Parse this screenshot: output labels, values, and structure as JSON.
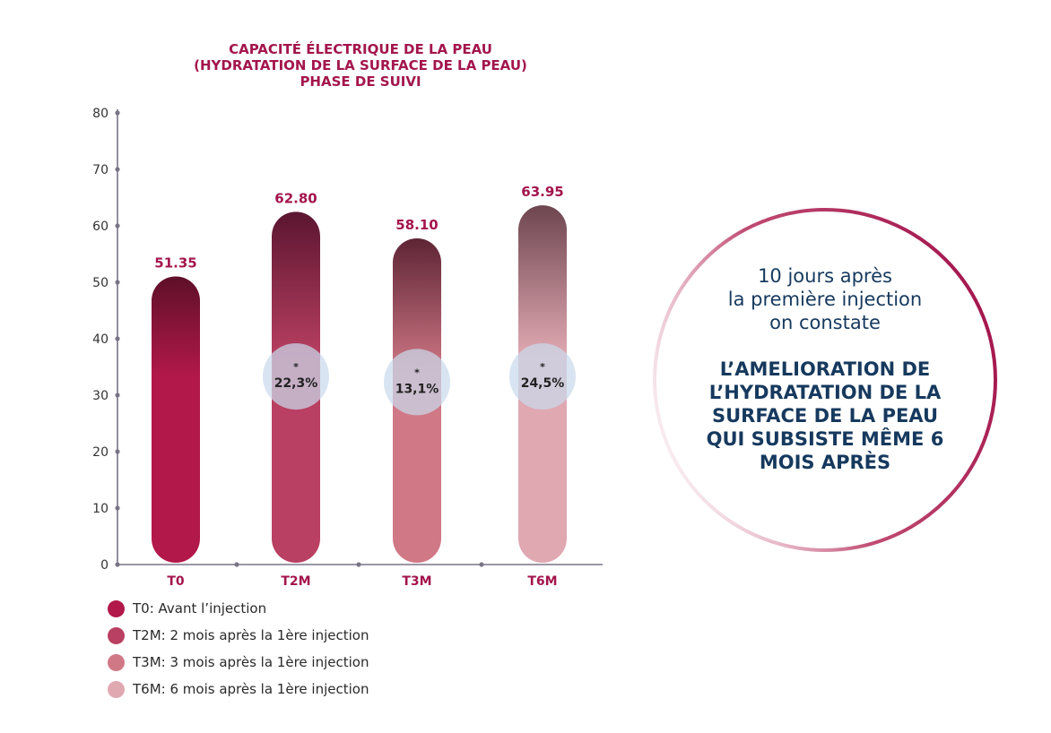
{
  "chart_data": {
    "type": "bar",
    "title": [
      "CAPACITÉ ÉLECTRIQUE DE LA PEAU",
      "(HYDRATATION DE LA SURFACE DE LA PEAU)",
      "PHASE DE SUIVI"
    ],
    "categories": [
      "T0",
      "T2M",
      "T3M",
      "T6M"
    ],
    "values": [
      51.35,
      62.8,
      58.1,
      63.95
    ],
    "value_labels": [
      "51.35",
      "62.80",
      "58.10",
      "63.95"
    ],
    "ylim": [
      0,
      80
    ],
    "yticks": [
      "0",
      "10",
      "20",
      "30",
      "40",
      "50",
      "60",
      "70",
      "80"
    ],
    "grid": true,
    "increase_badges": [
      {
        "category": "T2M",
        "star": "*",
        "label": "22,3%",
        "at_value": 33
      },
      {
        "category": "T3M",
        "star": "*",
        "label": "13,1%",
        "at_value": 32
      },
      {
        "category": "T6M",
        "star": "*",
        "label": "24,5%",
        "at_value": 33
      }
    ],
    "colors": {
      "title": "#a3154d",
      "value_label": "#a3154d",
      "tick_label_x": "#a3154d",
      "tick_label_y": "#333333",
      "axis": "#7a7585",
      "badge": "#c9d9ec",
      "bars": [
        "#b21849",
        "#b94062",
        "#d07886",
        "#e0a8b1"
      ],
      "bar_tops": [
        "#5e1029",
        "#5b1530",
        "#5e2535",
        "#6e4650"
      ]
    }
  },
  "legend": {
    "items": [
      {
        "label": "T0: Avant l’injection",
        "color": "#b21849"
      },
      {
        "label": "T2M: 2 mois après la 1ère injection",
        "color": "#b94062"
      },
      {
        "label": "T3M: 3 mois après la 1ère injection",
        "color": "#d07886"
      },
      {
        "label": "T6M: 6 mois après la 1ère injection",
        "color": "#e0a8b1"
      }
    ]
  },
  "note": {
    "intro": [
      "10 jours après",
      "la première injection",
      "on constate"
    ],
    "headline": [
      "L’AMELIORATION DE",
      "L’HYDRATATION DE LA",
      "SURFACE DE LA PEAU",
      "QUI SUBSISTE MÊME 6",
      "MOIS APRÈS"
    ],
    "text_color": "#16395e",
    "ring_color": "#a3154d"
  }
}
